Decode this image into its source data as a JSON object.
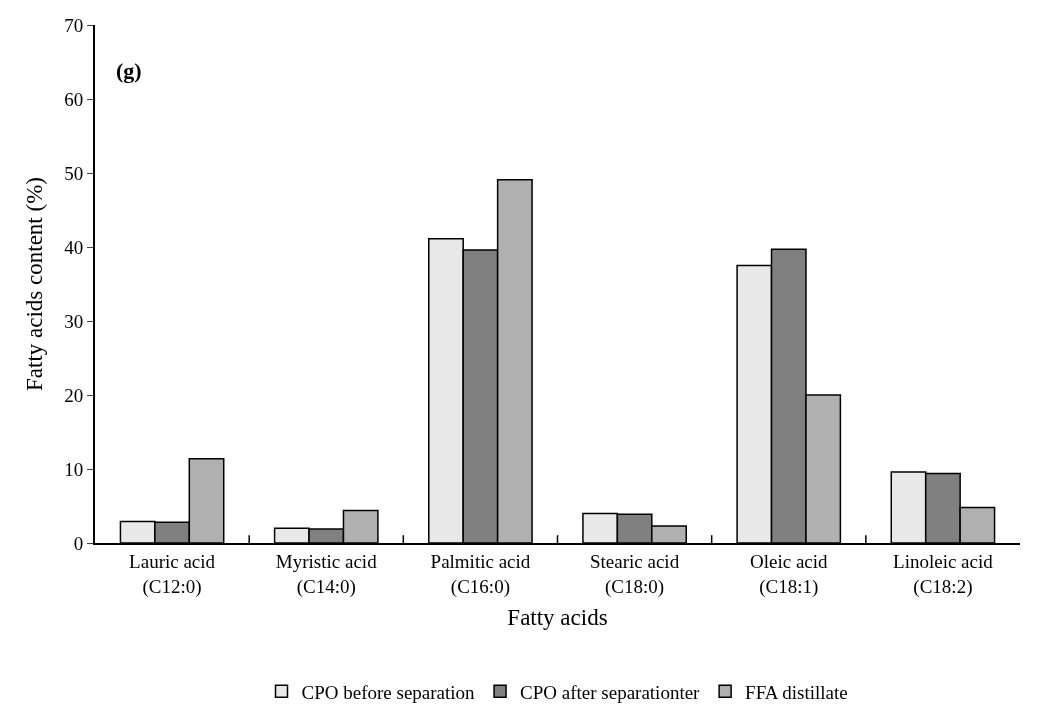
{
  "chart_data": {
    "type": "bar",
    "xlabel": "Fatty acids",
    "ylabel": "Fatty acids content (%)",
    "annotations": [
      "(g)"
    ],
    "categories": [
      "Lauric acid\n(C12:0)",
      "Myristic acid\n(C14:0)",
      "Palmitic acid\n(C16:0)",
      "Stearic acid\n(C18:0)",
      "Oleic acid\n(C18:1)",
      "Linoleic acid\n(C18:2)"
    ],
    "series": [
      {
        "name": "CPO before separation",
        "color": "#e8e8e8",
        "values": [
          2.9,
          2.0,
          41.1,
          4.0,
          37.5,
          9.6
        ]
      },
      {
        "name": "CPO after separationter",
        "color": "#808080",
        "values": [
          2.8,
          1.9,
          39.6,
          3.9,
          39.7,
          9.4
        ]
      },
      {
        "name": "FFA distillate",
        "color": "#b0b0b0",
        "values": [
          11.4,
          4.4,
          49.1,
          2.3,
          20.0,
          4.8
        ]
      }
    ],
    "ylim": [
      0,
      70
    ],
    "yticks": [
      0,
      10,
      20,
      30,
      40,
      50,
      60,
      70
    ],
    "legend": "bottom"
  }
}
